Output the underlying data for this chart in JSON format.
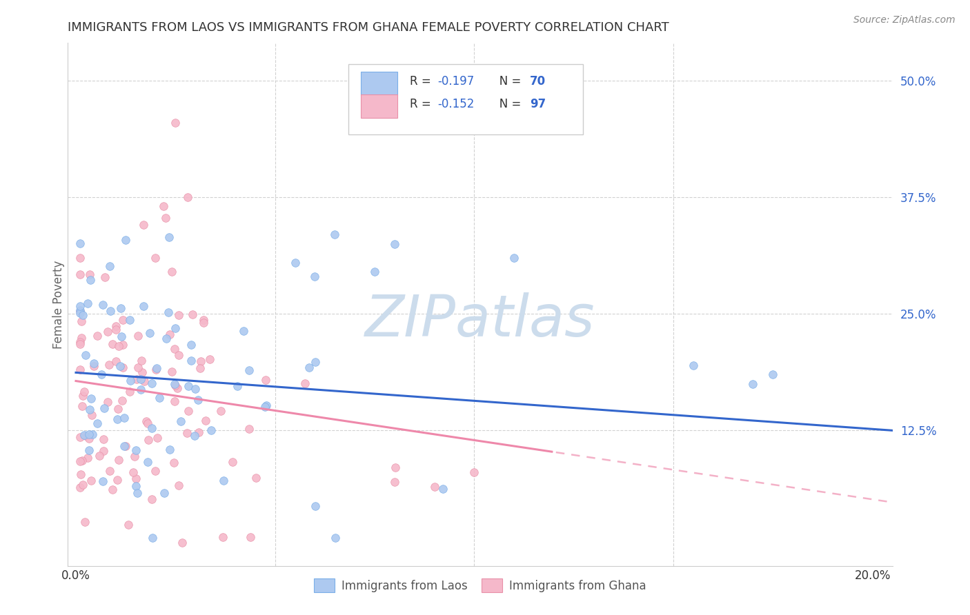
{
  "title": "IMMIGRANTS FROM LAOS VS IMMIGRANTS FROM GHANA FEMALE POVERTY CORRELATION CHART",
  "source": "Source: ZipAtlas.com",
  "ylabel": "Female Poverty",
  "ytick_labels": [
    "12.5%",
    "25.0%",
    "37.5%",
    "50.0%"
  ],
  "ytick_values": [
    0.125,
    0.25,
    0.375,
    0.5
  ],
  "xtick_labels": [
    "0.0%",
    "20.0%"
  ],
  "xtick_values": [
    0.0,
    0.2
  ],
  "xlim": [
    -0.002,
    0.205
  ],
  "ylim": [
    -0.02,
    0.54
  ],
  "laos_color": "#adc9f0",
  "laos_edge": "#7aaee8",
  "ghana_color": "#f5b8ca",
  "ghana_edge": "#e890a8",
  "trend_laos_color": "#3366cc",
  "trend_ghana_color": "#ee88aa",
  "watermark": "ZIPatlas",
  "watermark_color": "#ccdcec",
  "background_color": "#ffffff",
  "ytick_color": "#3366cc",
  "xtick_color": "#333333",
  "title_color": "#333333",
  "ylabel_color": "#666666",
  "scatter_size": 70,
  "trend_laos_x0": 0.0,
  "trend_laos_y0": 0.187,
  "trend_laos_x1": 0.205,
  "trend_laos_y1": 0.125,
  "trend_ghana_x0": 0.0,
  "trend_ghana_y0": 0.178,
  "trend_ghana_x1": 0.205,
  "trend_ghana_y1": 0.048,
  "trend_ghana_solid_end": 0.12,
  "legend_R_laos": "R = -0.197",
  "legend_N_laos": "N = 70",
  "legend_R_ghana": "R = -0.152",
  "legend_N_ghana": "N = 97",
  "legend_color_number": "#3366cc",
  "legend_color_text": "#333333",
  "bottom_legend_laos": "Immigrants from Laos",
  "bottom_legend_ghana": "Immigrants from Ghana"
}
